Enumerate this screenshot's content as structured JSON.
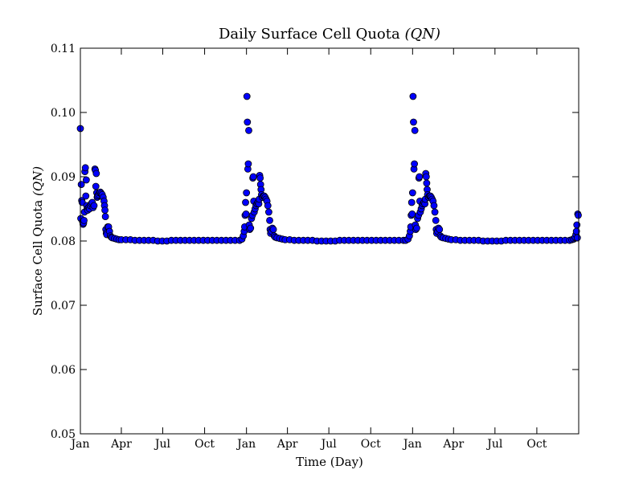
{
  "chart_data": {
    "type": "scatter",
    "title": "Daily Surface Cell Quota",
    "title_math": "(QN)",
    "xlabel": "Time (Day)",
    "ylabel": "Surface Cell Quota",
    "ylabel_math": "(QN)",
    "xlim": [
      0,
      1095
    ],
    "ylim": [
      0.05,
      0.11
    ],
    "y_ticks": [
      "0.05",
      "0.06",
      "0.07",
      "0.08",
      "0.09",
      "0.10",
      "0.11"
    ],
    "x_ticks": [
      {
        "label": "Jan",
        "day": 0
      },
      {
        "label": "Apr",
        "day": 90
      },
      {
        "label": "Jul",
        "day": 181
      },
      {
        "label": "Oct",
        "day": 273
      },
      {
        "label": "Jan",
        "day": 365
      },
      {
        "label": "Apr",
        "day": 455
      },
      {
        "label": "Jul",
        "day": 546
      },
      {
        "label": "Oct",
        "day": 638
      },
      {
        "label": "Jan",
        "day": 730
      },
      {
        "label": "Apr",
        "day": 820
      },
      {
        "label": "Jul",
        "day": 911
      },
      {
        "label": "Oct",
        "day": 1003
      }
    ],
    "grid": false,
    "legend": "none",
    "marker_color": "#0000ff",
    "marker_edge_color": "#000000",
    "series": [
      {
        "values": [
          [
            0,
            0.0975
          ],
          [
            1,
            0.0835
          ],
          [
            2,
            0.0888
          ],
          [
            3,
            0.0863
          ],
          [
            4,
            0.086
          ],
          [
            5,
            0.083
          ],
          [
            6,
            0.0826
          ],
          [
            7,
            0.0828
          ],
          [
            8,
            0.0832
          ],
          [
            9,
            0.0845
          ],
          [
            10,
            0.0908
          ],
          [
            11,
            0.0914
          ],
          [
            12,
            0.087
          ],
          [
            13,
            0.0895
          ],
          [
            14,
            0.0855
          ],
          [
            15,
            0.085
          ],
          [
            16,
            0.0848
          ],
          [
            18,
            0.0852
          ],
          [
            20,
            0.085
          ],
          [
            22,
            0.0855
          ],
          [
            24,
            0.0858
          ],
          [
            26,
            0.086
          ],
          [
            28,
            0.0852
          ],
          [
            30,
            0.0855
          ],
          [
            32,
            0.0912
          ],
          [
            33,
            0.091
          ],
          [
            34,
            0.0885
          ],
          [
            35,
            0.0905
          ],
          [
            36,
            0.0875
          ],
          [
            37,
            0.0868
          ],
          [
            38,
            0.087
          ],
          [
            40,
            0.0872
          ],
          [
            42,
            0.0875
          ],
          [
            44,
            0.0876
          ],
          [
            46,
            0.0874
          ],
          [
            48,
            0.0872
          ],
          [
            50,
            0.0868
          ],
          [
            52,
            0.0862
          ],
          [
            53,
            0.0855
          ],
          [
            54,
            0.0848
          ],
          [
            55,
            0.0838
          ],
          [
            56,
            0.0818
          ],
          [
            57,
            0.0812
          ],
          [
            58,
            0.081
          ],
          [
            60,
            0.0822
          ],
          [
            62,
            0.0822
          ],
          [
            64,
            0.0815
          ],
          [
            66,
            0.0808
          ],
          [
            68,
            0.0806
          ],
          [
            70,
            0.0805
          ],
          [
            75,
            0.0804
          ],
          [
            80,
            0.0803
          ],
          [
            85,
            0.0802
          ],
          [
            90,
            0.0802
          ],
          [
            100,
            0.0802
          ],
          [
            110,
            0.0802
          ],
          [
            120,
            0.0801
          ],
          [
            130,
            0.0801
          ],
          [
            140,
            0.0801
          ],
          [
            150,
            0.0801
          ],
          [
            160,
            0.0801
          ],
          [
            170,
            0.08
          ],
          [
            180,
            0.08
          ],
          [
            190,
            0.08
          ],
          [
            200,
            0.0801
          ],
          [
            210,
            0.0801
          ],
          [
            220,
            0.0801
          ],
          [
            230,
            0.0801
          ],
          [
            240,
            0.0801
          ],
          [
            250,
            0.0801
          ],
          [
            260,
            0.0801
          ],
          [
            270,
            0.0801
          ],
          [
            280,
            0.0801
          ],
          [
            290,
            0.0801
          ],
          [
            300,
            0.0801
          ],
          [
            310,
            0.0801
          ],
          [
            320,
            0.0801
          ],
          [
            330,
            0.0801
          ],
          [
            340,
            0.0801
          ],
          [
            350,
            0.0801
          ],
          [
            355,
            0.0803
          ],
          [
            358,
            0.0808
          ],
          [
            360,
            0.0815
          ],
          [
            361,
            0.0822
          ],
          [
            362,
            0.084
          ],
          [
            363,
            0.086
          ],
          [
            364,
            0.0842
          ],
          [
            365,
            0.0875
          ],
          [
            366,
            0.1025
          ],
          [
            367,
            0.0985
          ],
          [
            368,
            0.0912
          ],
          [
            369,
            0.092
          ],
          [
            370,
            0.0972
          ],
          [
            371,
            0.0825
          ],
          [
            372,
            0.0818
          ],
          [
            374,
            0.082
          ],
          [
            376,
            0.0835
          ],
          [
            378,
            0.084
          ],
          [
            379,
            0.0898
          ],
          [
            380,
            0.09
          ],
          [
            381,
            0.0862
          ],
          [
            382,
            0.0845
          ],
          [
            384,
            0.085
          ],
          [
            386,
            0.0855
          ],
          [
            388,
            0.0858
          ],
          [
            390,
            0.086
          ],
          [
            392,
            0.0858
          ],
          [
            393,
            0.0865
          ],
          [
            394,
            0.0902
          ],
          [
            395,
            0.0898
          ],
          [
            396,
            0.0888
          ],
          [
            397,
            0.088
          ],
          [
            398,
            0.0872
          ],
          [
            400,
            0.0868
          ],
          [
            402,
            0.087
          ],
          [
            404,
            0.087
          ],
          [
            406,
            0.0868
          ],
          [
            408,
            0.0865
          ],
          [
            410,
            0.0862
          ],
          [
            412,
            0.0855
          ],
          [
            414,
            0.0845
          ],
          [
            416,
            0.0832
          ],
          [
            417,
            0.0818
          ],
          [
            418,
            0.0812
          ],
          [
            420,
            0.0815
          ],
          [
            422,
            0.082
          ],
          [
            424,
            0.0818
          ],
          [
            426,
            0.0808
          ],
          [
            428,
            0.0806
          ],
          [
            432,
            0.0805
          ],
          [
            438,
            0.0804
          ],
          [
            444,
            0.0803
          ],
          [
            450,
            0.0802
          ],
          [
            460,
            0.0802
          ],
          [
            470,
            0.0801
          ],
          [
            480,
            0.0801
          ],
          [
            490,
            0.0801
          ],
          [
            500,
            0.0801
          ],
          [
            510,
            0.0801
          ],
          [
            520,
            0.08
          ],
          [
            530,
            0.08
          ],
          [
            540,
            0.08
          ],
          [
            550,
            0.08
          ],
          [
            560,
            0.08
          ],
          [
            570,
            0.0801
          ],
          [
            580,
            0.0801
          ],
          [
            590,
            0.0801
          ],
          [
            600,
            0.0801
          ],
          [
            610,
            0.0801
          ],
          [
            620,
            0.0801
          ],
          [
            630,
            0.0801
          ],
          [
            640,
            0.0801
          ],
          [
            650,
            0.0801
          ],
          [
            660,
            0.0801
          ],
          [
            670,
            0.0801
          ],
          [
            680,
            0.0801
          ],
          [
            690,
            0.0801
          ],
          [
            700,
            0.0801
          ],
          [
            710,
            0.0801
          ],
          [
            715,
            0.0801
          ],
          [
            720,
            0.0803
          ],
          [
            723,
            0.0808
          ],
          [
            725,
            0.0815
          ],
          [
            726,
            0.0822
          ],
          [
            727,
            0.084
          ],
          [
            728,
            0.086
          ],
          [
            729,
            0.0842
          ],
          [
            730,
            0.0875
          ],
          [
            731,
            0.1025
          ],
          [
            732,
            0.0985
          ],
          [
            733,
            0.0912
          ],
          [
            734,
            0.092
          ],
          [
            735,
            0.0972
          ],
          [
            736,
            0.0825
          ],
          [
            737,
            0.0818
          ],
          [
            739,
            0.082
          ],
          [
            741,
            0.0835
          ],
          [
            743,
            0.084
          ],
          [
            744,
            0.0898
          ],
          [
            745,
            0.09
          ],
          [
            746,
            0.0862
          ],
          [
            747,
            0.0845
          ],
          [
            749,
            0.085
          ],
          [
            751,
            0.0855
          ],
          [
            753,
            0.0858
          ],
          [
            755,
            0.086
          ],
          [
            757,
            0.0858
          ],
          [
            758,
            0.0865
          ],
          [
            759,
            0.0905
          ],
          [
            760,
            0.09
          ],
          [
            761,
            0.089
          ],
          [
            762,
            0.088
          ],
          [
            763,
            0.0872
          ],
          [
            765,
            0.0868
          ],
          [
            767,
            0.087
          ],
          [
            769,
            0.087
          ],
          [
            771,
            0.0868
          ],
          [
            773,
            0.0865
          ],
          [
            775,
            0.0862
          ],
          [
            777,
            0.0855
          ],
          [
            779,
            0.0845
          ],
          [
            781,
            0.0832
          ],
          [
            782,
            0.0818
          ],
          [
            783,
            0.0812
          ],
          [
            785,
            0.0815
          ],
          [
            787,
            0.082
          ],
          [
            789,
            0.0818
          ],
          [
            791,
            0.0808
          ],
          [
            793,
            0.0806
          ],
          [
            797,
            0.0805
          ],
          [
            803,
            0.0804
          ],
          [
            809,
            0.0803
          ],
          [
            815,
            0.0802
          ],
          [
            825,
            0.0802
          ],
          [
            835,
            0.0801
          ],
          [
            845,
            0.0801
          ],
          [
            855,
            0.0801
          ],
          [
            865,
            0.0801
          ],
          [
            875,
            0.0801
          ],
          [
            885,
            0.08
          ],
          [
            895,
            0.08
          ],
          [
            905,
            0.08
          ],
          [
            915,
            0.08
          ],
          [
            925,
            0.08
          ],
          [
            935,
            0.0801
          ],
          [
            945,
            0.0801
          ],
          [
            955,
            0.0801
          ],
          [
            965,
            0.0801
          ],
          [
            975,
            0.0801
          ],
          [
            985,
            0.0801
          ],
          [
            995,
            0.0801
          ],
          [
            1005,
            0.0801
          ],
          [
            1015,
            0.0801
          ],
          [
            1025,
            0.0801
          ],
          [
            1035,
            0.0801
          ],
          [
            1045,
            0.0801
          ],
          [
            1055,
            0.0801
          ],
          [
            1065,
            0.0801
          ],
          [
            1075,
            0.0801
          ],
          [
            1080,
            0.0802
          ],
          [
            1084,
            0.0803
          ],
          [
            1087,
            0.0806
          ],
          [
            1089,
            0.081
          ],
          [
            1090,
            0.0815
          ],
          [
            1091,
            0.0825
          ],
          [
            1092,
            0.0805
          ],
          [
            1093,
            0.0842
          ],
          [
            1094,
            0.084
          ]
        ]
      }
    ]
  }
}
